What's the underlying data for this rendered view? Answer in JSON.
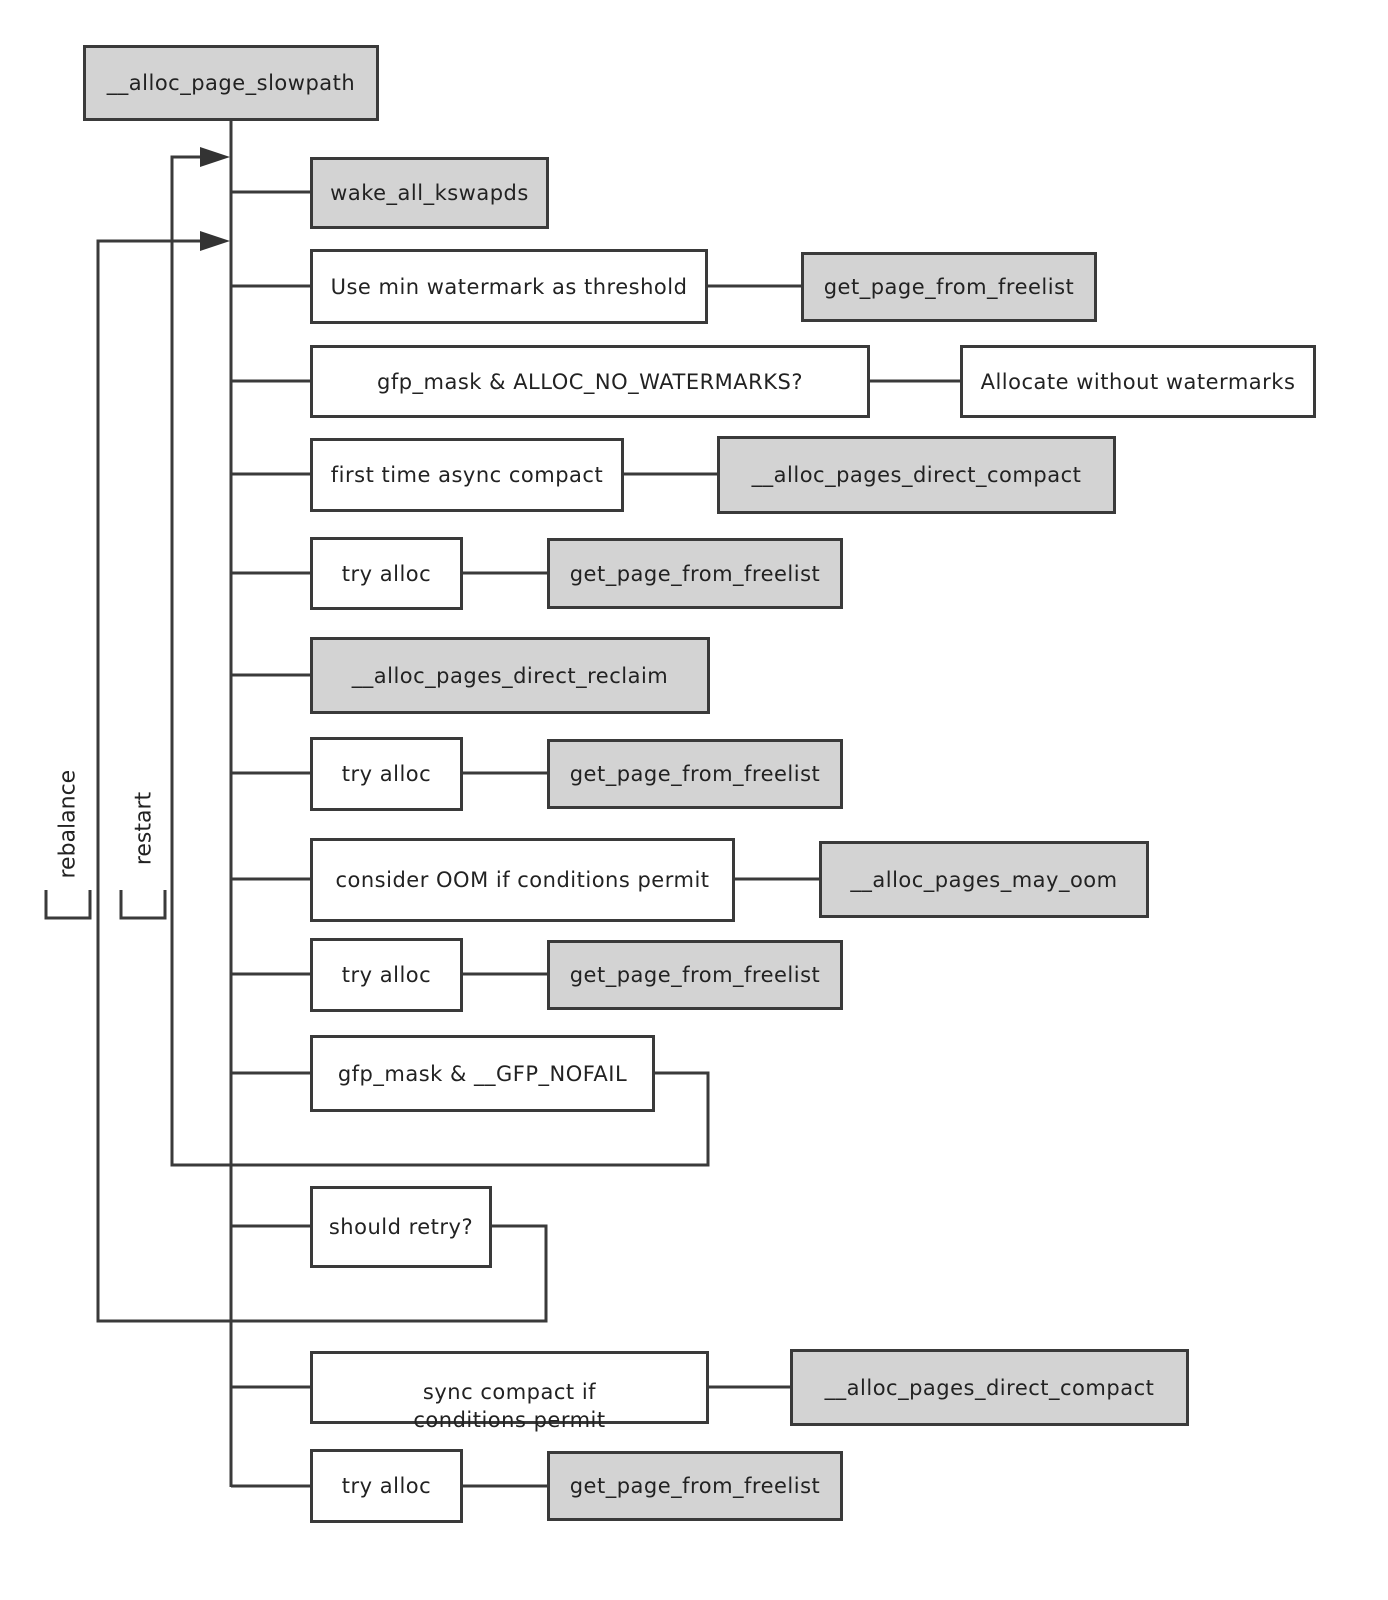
{
  "colors": {
    "line": "#3a3a3a",
    "function_fill": "#d3d3d3",
    "step_fill": "#ffffff"
  },
  "root": {
    "label": "__alloc_page_slowpath",
    "highlighted": true
  },
  "nodes": {
    "wake": {
      "label": "wake_all_kswapds",
      "highlighted": true
    },
    "min_wm": {
      "label": "Use min watermark as threshold"
    },
    "gpff1": {
      "label": "get_page_from_freelist",
      "highlighted": true
    },
    "no_wm": {
      "label": "gfp_mask & ALLOC_NO_WATERMARKS?"
    },
    "alloc_no_wm": {
      "label": "Allocate without watermarks"
    },
    "async": {
      "label": "first time async compact"
    },
    "compact1": {
      "label": "__alloc_pages_direct_compact",
      "highlighted": true
    },
    "try1": {
      "label": "try alloc"
    },
    "gpff2": {
      "label": "get_page_from_freelist",
      "highlighted": true
    },
    "reclaim": {
      "label": "__alloc_pages_direct_reclaim",
      "highlighted": true
    },
    "try2": {
      "label": "try alloc"
    },
    "gpff3": {
      "label": "get_page_from_freelist",
      "highlighted": true
    },
    "oom": {
      "label": "consider OOM if conditions permit"
    },
    "may_oom": {
      "label": "__alloc_pages_may_oom",
      "highlighted": true
    },
    "try3": {
      "label": "try alloc"
    },
    "gpff4": {
      "label": "get_page_from_freelist",
      "highlighted": true
    },
    "nofail": {
      "label": "gfp_mask & __GFP_NOFAIL"
    },
    "retry": {
      "label": "should retry?"
    },
    "sync": {
      "label": "sync compact if conditions permit"
    },
    "compact2": {
      "label": "__alloc_pages_direct_compact",
      "highlighted": true
    },
    "try4": {
      "label": "try alloc"
    },
    "gpff5": {
      "label": "get_page_from_freelist",
      "highlighted": true
    }
  },
  "loops": {
    "restart": "restart",
    "rebalance": "rebalance"
  }
}
